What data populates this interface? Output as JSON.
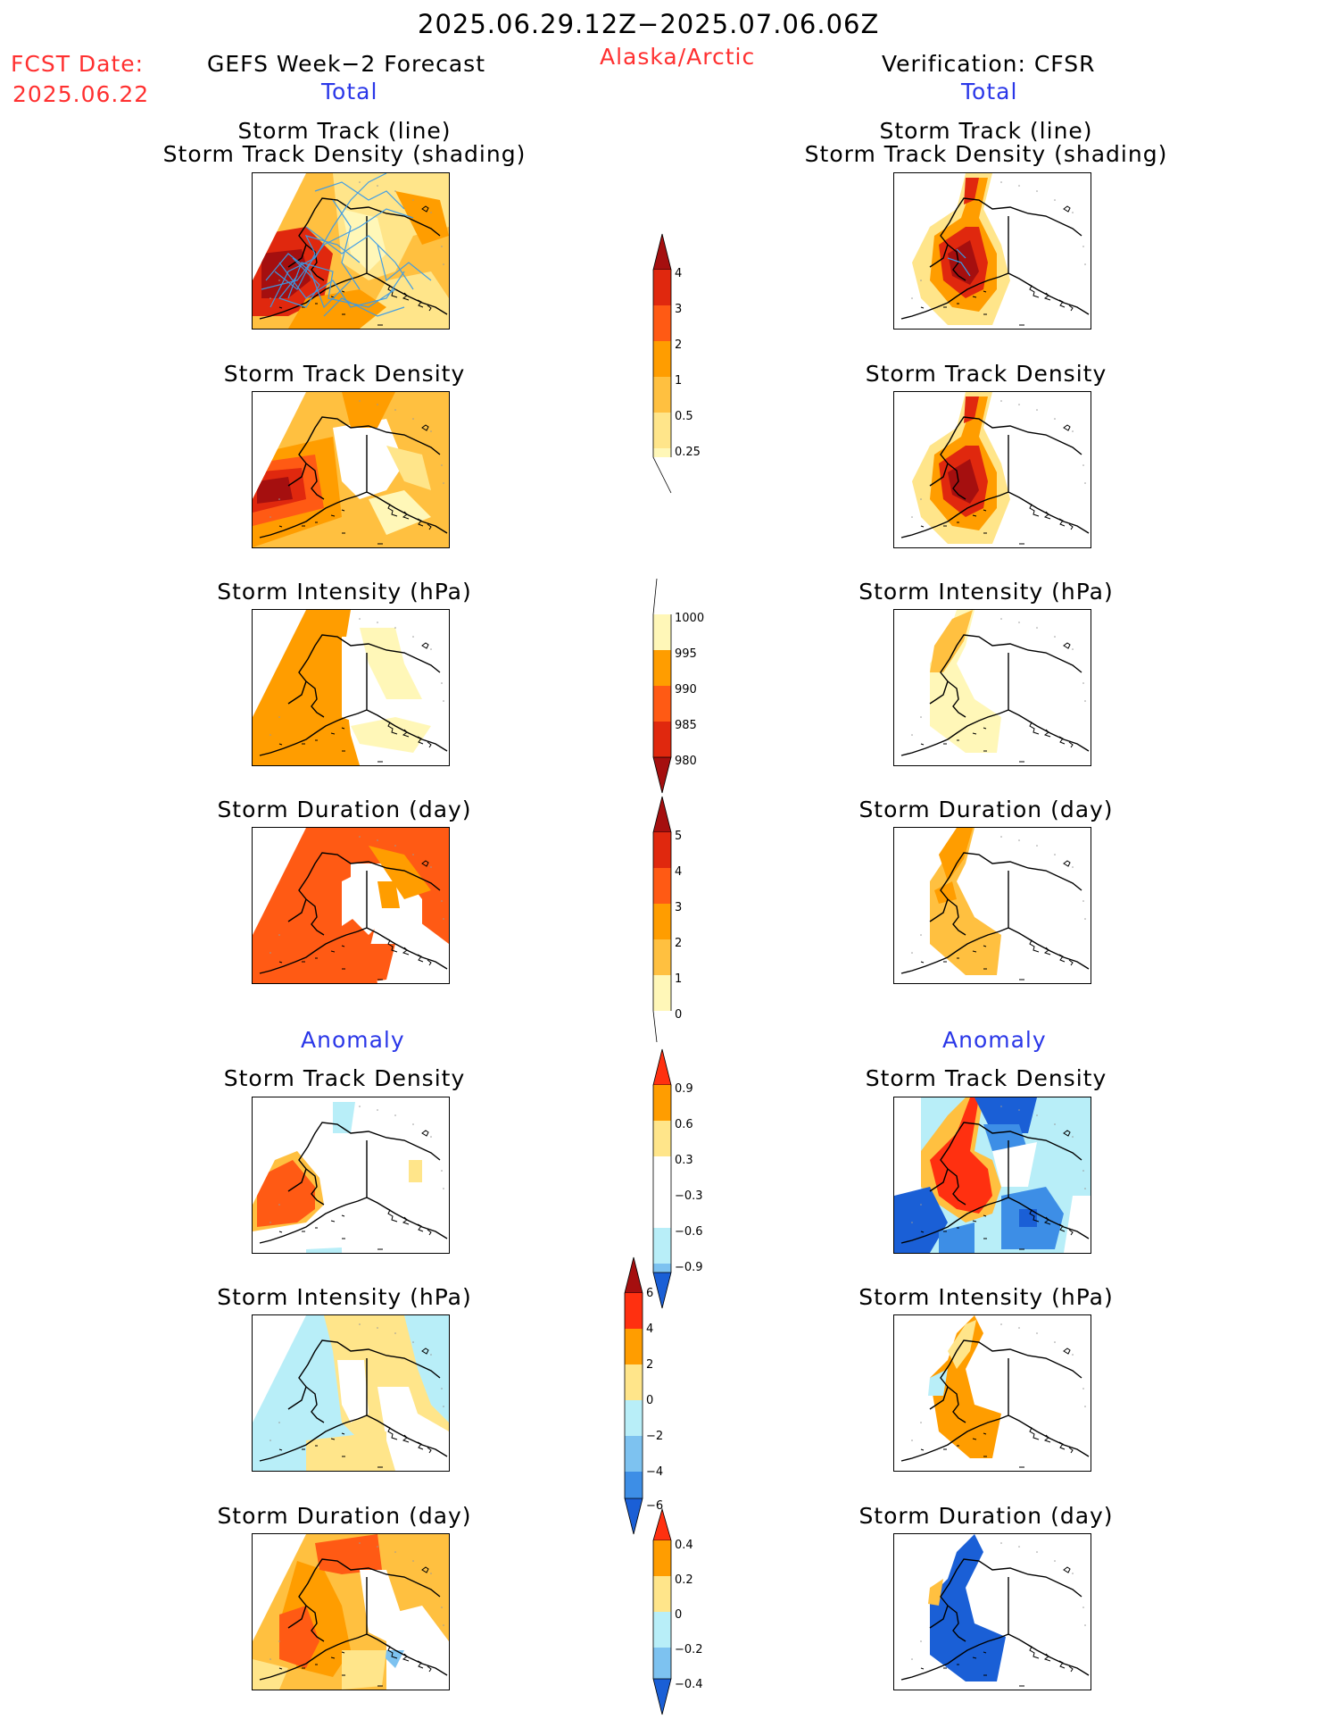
{
  "header": {
    "title": "2025.06.29.12Z−2025.07.06.06Z",
    "fcst_label": "FCST Date:",
    "fcst_date": "2025.06.22",
    "left_title": "GEFS Week−2 Forecast",
    "region": "Alaska/Arctic",
    "right_title": "Verification: CFSR",
    "total_left": "Total",
    "total_right": "Total"
  },
  "sections": {
    "anomaly_left": "Anomaly",
    "anomaly_right": "Anomaly"
  },
  "panels": {
    "track_line": "Storm Track (line)",
    "track_shading": "Storm Track Density (shading)",
    "density": "Storm Track Density",
    "intensity": "Storm Intensity (hPa)",
    "duration": "Storm Duration (day)"
  },
  "colorbars": {
    "density_total": [
      "4",
      "3",
      "2",
      "1",
      "0.5",
      "0.25"
    ],
    "intensity_total": [
      "1000",
      "995",
      "990",
      "985",
      "980"
    ],
    "duration_total": [
      "5",
      "4",
      "3",
      "2",
      "1",
      "0"
    ],
    "density_anom": [
      "0.9",
      "0.6",
      "0.3",
      "−0.3",
      "−0.6",
      "−0.9"
    ],
    "intensity_anom": [
      "6",
      "4",
      "2",
      "0",
      "−2",
      "−4",
      "−6"
    ],
    "duration_anom": [
      "0.4",
      "0.2",
      "0",
      "−0.2",
      "−0.4"
    ]
  },
  "colors": {
    "darkred": "#a50f0f",
    "red": "#e0280e",
    "orangered": "#ff5a14",
    "orange": "#ff9d00",
    "lightorange": "#ffc040",
    "yellow": "#ffe58a",
    "paleyellow": "#fff7b8",
    "paleblue": "#b8eef8",
    "lightblue": "#7dc2f0",
    "blue": "#3d8ee6",
    "darkblue": "#1a5fd6",
    "track_line": "#3a9be8"
  }
}
